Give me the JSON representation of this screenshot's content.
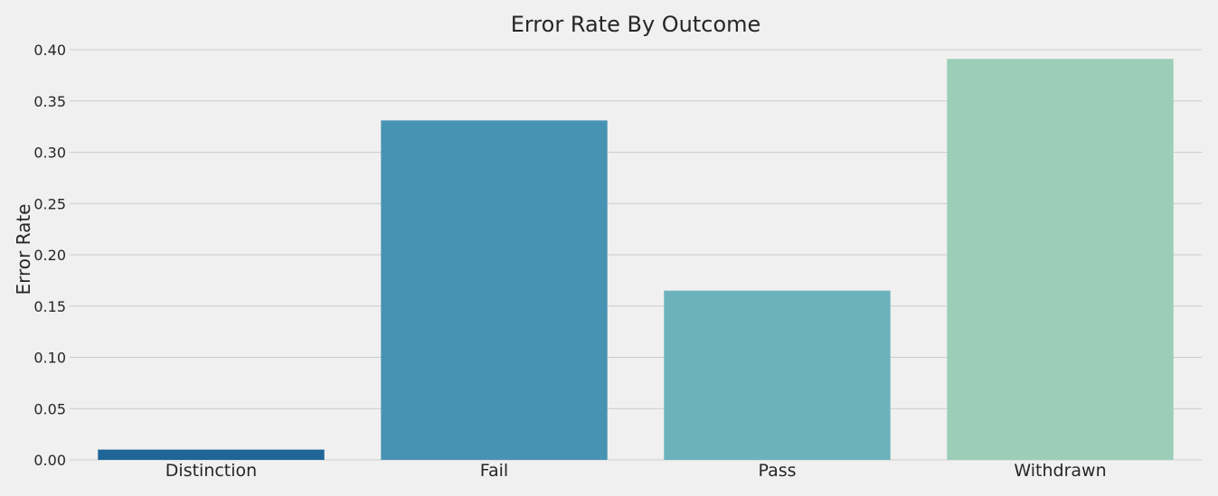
{
  "chart_data": {
    "type": "bar",
    "title": "Error Rate By Outcome",
    "xlabel": "",
    "ylabel": "Error Rate",
    "categories": [
      "Distinction",
      "Fail",
      "Pass",
      "Withdrawn"
    ],
    "values": [
      0.01,
      0.331,
      0.165,
      0.391
    ],
    "colors": [
      "#1f6598",
      "#4793b3",
      "#6cb2bc",
      "#9ccdb8"
    ],
    "ylim": [
      0,
      0.4
    ],
    "yticks": [
      "0.00",
      "0.05",
      "0.10",
      "0.15",
      "0.20",
      "0.25",
      "0.30",
      "0.35",
      "0.40"
    ],
    "grid": true,
    "background": "#f0f0f0"
  }
}
